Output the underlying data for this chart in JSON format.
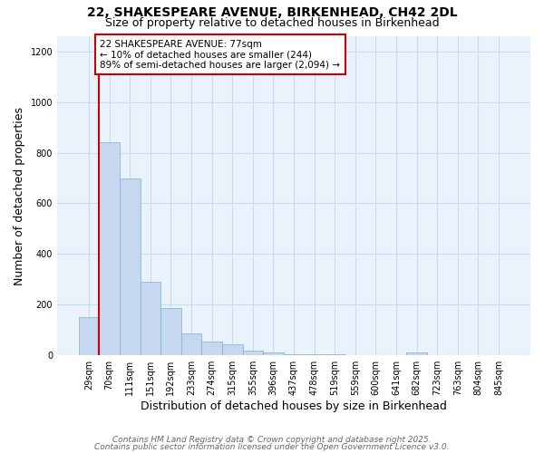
{
  "title_line1": "22, SHAKESPEARE AVENUE, BIRKENHEAD, CH42 2DL",
  "title_line2": "Size of property relative to detached houses in Birkenhead",
  "xlabel": "Distribution of detached houses by size in Birkenhead",
  "ylabel": "Number of detached properties",
  "bar_labels": [
    "29sqm",
    "70sqm",
    "111sqm",
    "151sqm",
    "192sqm",
    "233sqm",
    "274sqm",
    "315sqm",
    "355sqm",
    "396sqm",
    "437sqm",
    "478sqm",
    "519sqm",
    "559sqm",
    "600sqm",
    "641sqm",
    "682sqm",
    "723sqm",
    "763sqm",
    "804sqm",
    "845sqm"
  ],
  "bar_heights": [
    150,
    840,
    700,
    290,
    185,
    85,
    55,
    45,
    20,
    12,
    5,
    4,
    3,
    2,
    1,
    1,
    10,
    1,
    0,
    0,
    0
  ],
  "bar_color": "#c5d8f0",
  "bar_edge_color": "#7aaddb",
  "grid_color": "#c8ddf0",
  "background_color": "#eaf3fb",
  "annotation_text": "22 SHAKESPEARE AVENUE: 77sqm\n← 10% of detached houses are smaller (244)\n89% of semi-detached houses are larger (2,094) →",
  "annotation_box_color": "#ffffff",
  "annotation_border_color": "#cc0000",
  "red_line_color": "#cc0000",
  "ylim": [
    0,
    1260
  ],
  "yticks": [
    0,
    200,
    400,
    600,
    800,
    1000,
    1200
  ],
  "footer_line1": "Contains HM Land Registry data © Crown copyright and database right 2025.",
  "footer_line2": "Contains public sector information licensed under the Open Government Licence v3.0.",
  "title_fontsize": 10,
  "subtitle_fontsize": 9,
  "axis_label_fontsize": 9,
  "tick_fontsize": 7,
  "annotation_fontsize": 7.5,
  "footer_fontsize": 6.5
}
